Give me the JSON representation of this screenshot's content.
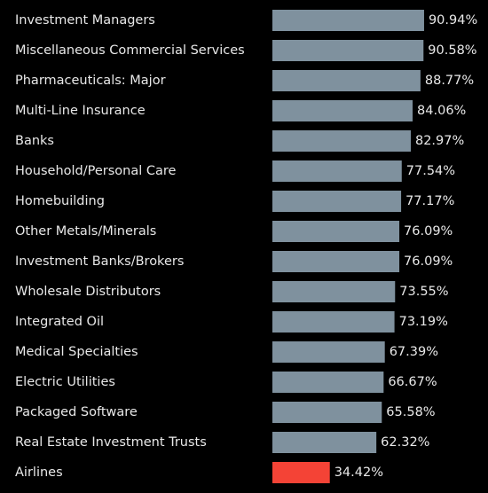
{
  "chart_data": {
    "type": "bar",
    "categories": [
      "Investment Managers",
      "Miscellaneous Commercial Services",
      "Pharmaceuticals: Major",
      "Multi-Line Insurance",
      "Banks",
      "Household/Personal Care",
      "Homebuilding",
      "Other Metals/Minerals",
      "Investment Banks/Brokers",
      "Wholesale Distributors",
      "Integrated Oil",
      "Medical Specialties",
      "Electric Utilities",
      "Packaged Software",
      "Real Estate Investment Trusts",
      "Airlines"
    ],
    "values": [
      90.94,
      90.58,
      88.77,
      84.06,
      82.97,
      77.54,
      77.17,
      76.09,
      76.09,
      73.55,
      73.19,
      67.39,
      66.67,
      65.58,
      62.32,
      34.42
    ],
    "value_labels": [
      "90.94%",
      "90.58%",
      "88.77%",
      "84.06%",
      "82.97%",
      "77.54%",
      "77.17%",
      "76.09%",
      "76.09%",
      "73.55%",
      "73.19%",
      "67.39%",
      "66.67%",
      "65.58%",
      "62.32%",
      "34.42%"
    ],
    "colors": [
      "#7f919e",
      "#7f919e",
      "#7f919e",
      "#7f919e",
      "#7f919e",
      "#7f919e",
      "#7f919e",
      "#7f919e",
      "#7f919e",
      "#7f919e",
      "#7f919e",
      "#7f919e",
      "#7f919e",
      "#7f919e",
      "#7f919e",
      "#f44336"
    ]
  }
}
